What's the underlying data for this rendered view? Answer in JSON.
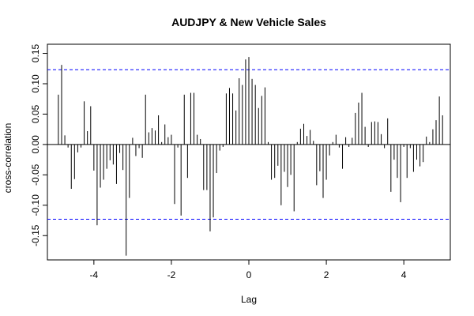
{
  "chart_data": {
    "type": "bar",
    "title": "AUDJPY & New Vehicle Sales",
    "xlabel": "Lag",
    "ylabel": "cross-correlation",
    "xlim": [
      -5.2,
      5.2
    ],
    "ylim": [
      -0.19,
      0.165
    ],
    "x_ticks": [
      -4,
      -2,
      0,
      2,
      4
    ],
    "x_tick_labels": [
      "-4",
      "-2",
      "0",
      "2",
      "4"
    ],
    "y_ticks": [
      -0.15,
      -0.1,
      -0.05,
      0.0,
      0.05,
      0.1,
      0.15
    ],
    "y_tick_labels": [
      "-0.15",
      "-0.10",
      "-0.05",
      "0.00",
      "0.05",
      "0.10",
      "0.15"
    ],
    "confidence_bounds": [
      0.123,
      -0.123
    ],
    "grid": false,
    "colors": {
      "bars": "#000000",
      "bounds": "#0000ff",
      "zero_line": "#000000"
    },
    "series": [
      {
        "x": [
          -4.917,
          -4.833,
          -4.75,
          -4.667,
          -4.583,
          -4.5,
          -4.417,
          -4.333,
          -4.25,
          -4.167,
          -4.083,
          -4.0,
          -3.917,
          -3.833,
          -3.75,
          -3.667,
          -3.583,
          -3.5,
          -3.417,
          -3.333,
          -3.25,
          -3.167,
          -3.083,
          -3.0,
          -2.917,
          -2.833,
          -2.75,
          -2.667,
          -2.583,
          -2.5,
          -2.417,
          -2.333,
          -2.25,
          -2.167,
          -2.083,
          -2.0,
          -1.917,
          -1.833,
          -1.75,
          -1.667,
          -1.583,
          -1.5,
          -1.417,
          -1.333,
          -1.25,
          -1.167,
          -1.083,
          -1.0,
          -0.917,
          -0.833,
          -0.75,
          -0.667,
          -0.583,
          -0.5,
          -0.417,
          -0.333,
          -0.25,
          -0.167,
          -0.083,
          0.0,
          0.083,
          0.167,
          0.25,
          0.333,
          0.417,
          0.5,
          0.583,
          0.667,
          0.75,
          0.833,
          0.917,
          1.0,
          1.083,
          1.167,
          1.25,
          1.333,
          1.417,
          1.5,
          1.583,
          1.667,
          1.75,
          1.833,
          1.917,
          2.0,
          2.083,
          2.167,
          2.25,
          2.333,
          2.417,
          2.5,
          2.583,
          2.667,
          2.75,
          2.833,
          2.917,
          3.0,
          3.083,
          3.167,
          3.25,
          3.333,
          3.417,
          3.5,
          3.583,
          3.667,
          3.75,
          3.833,
          3.917,
          4.0,
          4.083,
          4.167,
          4.25,
          4.333,
          4.417,
          4.5,
          4.583,
          4.667,
          4.75,
          4.833,
          4.917,
          5.0
        ],
        "values": [
          0.082,
          0.131,
          0.015,
          -0.005,
          -0.073,
          -0.057,
          -0.013,
          -0.005,
          0.071,
          0.022,
          0.063,
          -0.043,
          -0.133,
          -0.071,
          -0.058,
          -0.04,
          -0.026,
          -0.033,
          -0.065,
          -0.014,
          -0.042,
          -0.183,
          -0.088,
          0.011,
          -0.019,
          -0.006,
          -0.022,
          0.082,
          0.02,
          0.027,
          0.023,
          0.048,
          0.004,
          0.033,
          0.012,
          0.016,
          -0.098,
          -0.005,
          -0.117,
          0.082,
          -0.055,
          0.085,
          0.085,
          0.016,
          0.009,
          -0.075,
          -0.075,
          -0.143,
          -0.12,
          -0.047,
          -0.01,
          -0.004,
          0.084,
          0.093,
          0.084,
          0.056,
          0.109,
          0.098,
          0.14,
          0.144,
          0.108,
          0.098,
          0.06,
          0.08,
          0.094,
          0.004,
          -0.058,
          -0.055,
          -0.035,
          -0.1,
          -0.045,
          -0.07,
          -0.05,
          -0.11,
          0.004,
          0.026,
          0.034,
          0.014,
          0.024,
          0.006,
          -0.067,
          -0.044,
          -0.088,
          -0.058,
          -0.018,
          0.004,
          0.016,
          -0.005,
          -0.04,
          0.012,
          -0.004,
          0.011,
          0.052,
          0.069,
          0.085,
          0.029,
          -0.004,
          0.037,
          0.038,
          0.037,
          0.017,
          -0.006,
          0.043,
          -0.078,
          -0.025,
          -0.055,
          -0.095,
          -0.004,
          -0.055,
          -0.006,
          -0.045,
          -0.025,
          -0.036,
          -0.029,
          0.013,
          0.004,
          0.025,
          0.04,
          0.079,
          0.048
        ]
      }
    ]
  }
}
